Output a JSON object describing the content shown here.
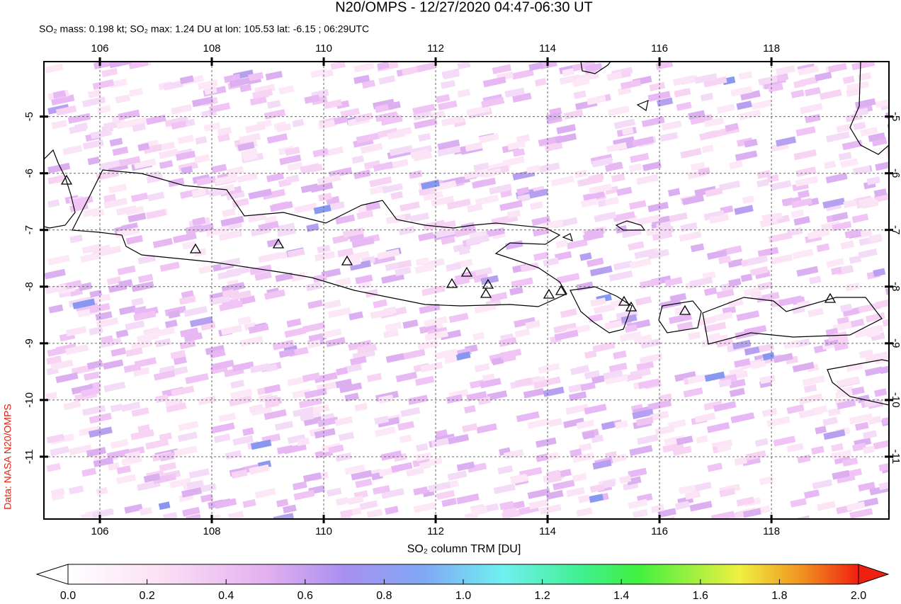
{
  "map": {
    "title": "N20/OMPS - 12/27/2020 04:47-06:30 UT",
    "subtitle": "SO₂ mass: 0.198 kt; SO₂ max: 1.24 DU at lon: 105.53 lat: -6.15 ; 06:29UTC",
    "credit": "Data: NASA N20/OMPS",
    "xlim": [
      105,
      120.1
    ],
    "ylim": [
      -12.1,
      -4.03
    ],
    "xticks": [
      106,
      108,
      110,
      112,
      114,
      116,
      118
    ],
    "yticks": [
      -5,
      -6,
      -7,
      -8,
      -9,
      -10,
      -11
    ],
    "colorbar": {
      "label": "SO₂ column TRM [DU]",
      "lim": [
        0,
        2
      ],
      "ticks": [
        {
          "value": 0,
          "label": "0.0"
        },
        {
          "value": 0.2,
          "label": "0.2"
        },
        {
          "value": 0.4,
          "label": "0.4"
        },
        {
          "value": 0.6,
          "label": "0.6"
        },
        {
          "value": 0.8,
          "label": "0.8"
        },
        {
          "value": 1,
          "label": "1.0"
        },
        {
          "value": 1.2,
          "label": "1.2"
        },
        {
          "value": 1.4,
          "label": "1.4"
        },
        {
          "value": 1.6,
          "label": "1.6"
        },
        {
          "value": 1.8,
          "label": "1.8"
        },
        {
          "value": 2,
          "label": "2.0"
        }
      ]
    }
  }
}
